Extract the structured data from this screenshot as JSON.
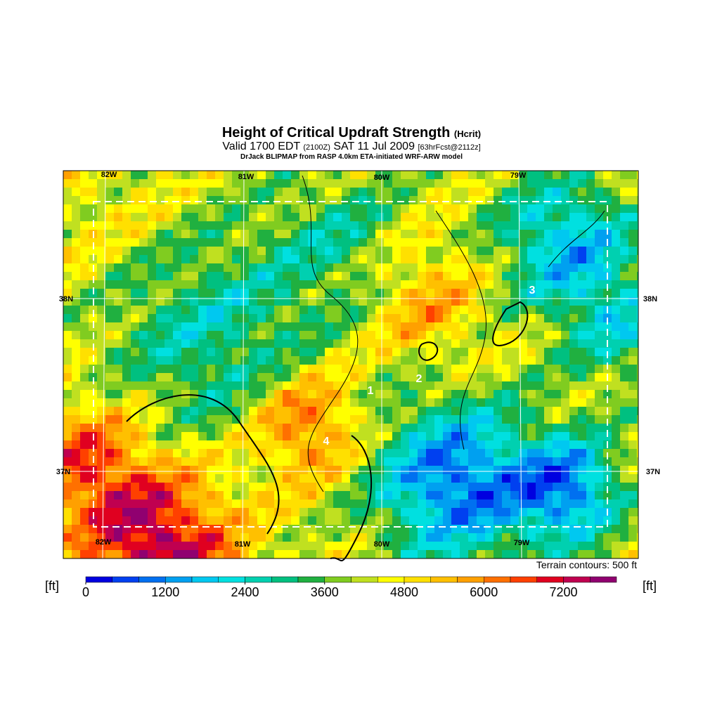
{
  "header": {
    "title": "Height of Critical Updraft Strength",
    "title_tag": "(Hcrit)",
    "valid": "Valid 1700 EDT",
    "zulu": "(2100Z)",
    "date": "SAT 11 Jul 2009",
    "forecast": "[63hrFcst@2112z]",
    "source": "DrJack BLIPMAP from RASP 4.0km ETA-initiated WRF-ARW model"
  },
  "map": {
    "lon_top": [
      "82W",
      "81W",
      "80W",
      "79W"
    ],
    "lon_bottom": [
      "82W",
      "81W",
      "80W",
      "79W"
    ],
    "lat_left": [
      "38N",
      "37N"
    ],
    "lat_right": [
      "38N",
      "37N"
    ],
    "markers": [
      "1",
      "2",
      "3",
      "4"
    ],
    "note": "Terrain contours: 500 ft"
  },
  "colorbar": {
    "unit_left": "[ft]",
    "unit_right": "[ft]",
    "min": 0,
    "max": 8000,
    "ticks": [
      0,
      1200,
      2400,
      3600,
      4800,
      6000,
      7200
    ],
    "colors": [
      "#0000e0",
      "#0040f0",
      "#0070f0",
      "#00a0f0",
      "#00c8f0",
      "#00e0e0",
      "#00d0b0",
      "#00c080",
      "#20b040",
      "#80cc20",
      "#c0e020",
      "#ffff00",
      "#ffe000",
      "#ffc000",
      "#ffa000",
      "#ff7000",
      "#ff4000",
      "#e00020",
      "#c00050",
      "#900070"
    ]
  }
}
